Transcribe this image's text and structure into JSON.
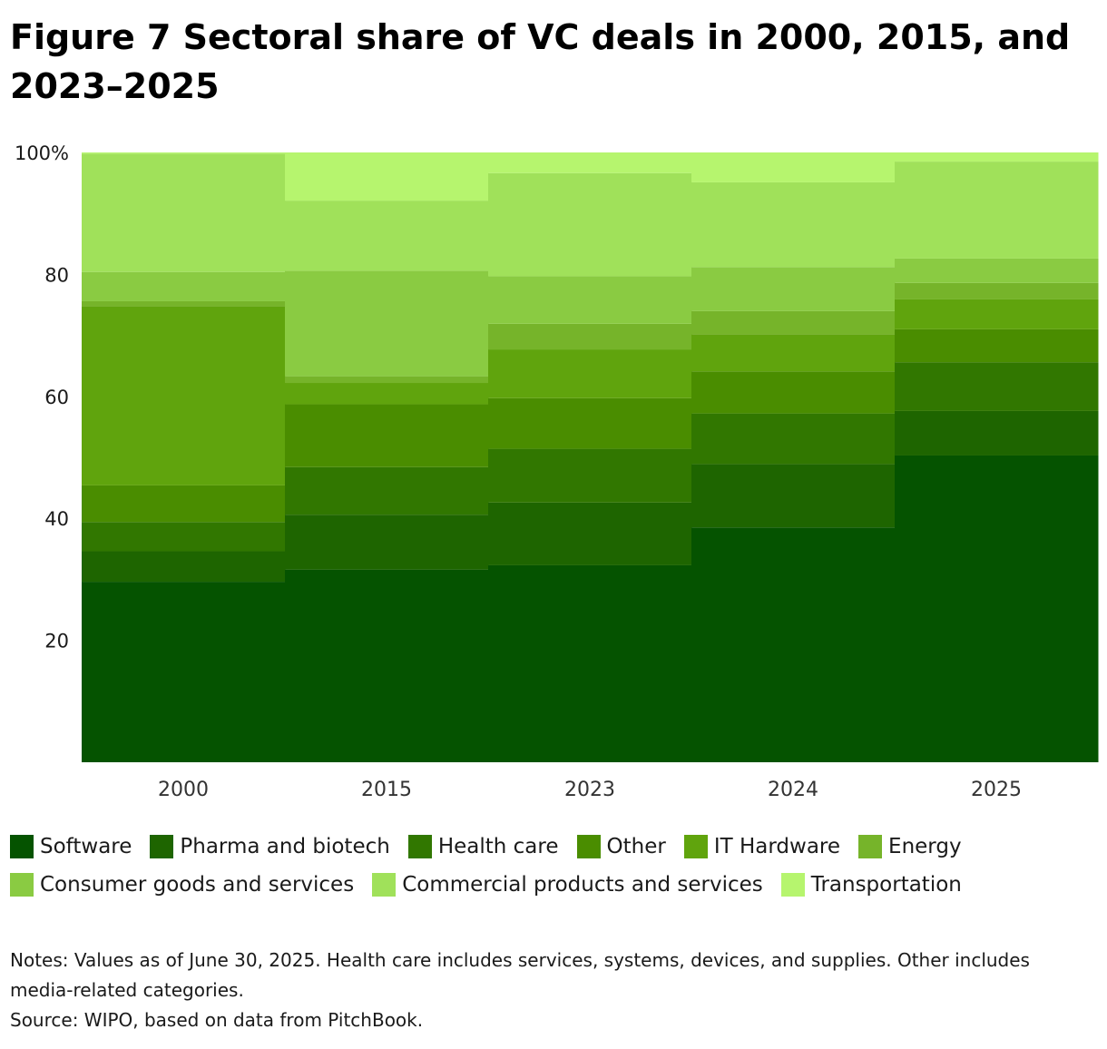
{
  "chart_data": {
    "type": "bar",
    "stacked": true,
    "title": "Figure 7 Sectoral share of VC deals in 2000, 2015, and 2023–2025",
    "xlabel": "",
    "ylabel": "",
    "ylim": [
      0,
      100
    ],
    "yticks": [
      20,
      40,
      60,
      80,
      100
    ],
    "ytick_labels": [
      "20",
      "40",
      "60",
      "80",
      "100%"
    ],
    "categories": [
      "2000",
      "2015",
      "2023",
      "2024",
      "2025"
    ],
    "series": [
      {
        "name": "Software",
        "color": "#055300",
        "values": [
          29.6,
          31.6,
          32.3,
          38.5,
          50.3
        ]
      },
      {
        "name": "Pharma and biotech",
        "color": "#1e6500",
        "values": [
          5.0,
          9.0,
          10.3,
          10.4,
          7.3
        ]
      },
      {
        "name": "Health care",
        "color": "#317700",
        "values": [
          4.8,
          7.8,
          8.8,
          8.3,
          8.0
        ]
      },
      {
        "name": "Other",
        "color": "#4a8d00",
        "values": [
          6.0,
          10.3,
          8.3,
          6.9,
          5.4
        ]
      },
      {
        "name": "IT Hardware",
        "color": "#60a40d",
        "values": [
          29.4,
          3.5,
          8.0,
          6.1,
          4.9
        ]
      },
      {
        "name": "Energy",
        "color": "#76b42a",
        "values": [
          0.8,
          1.1,
          4.2,
          3.8,
          2.7
        ]
      },
      {
        "name": "Consumer goods and services",
        "color": "#8acb42",
        "values": [
          4.8,
          17.3,
          7.8,
          7.2,
          4.0
        ]
      },
      {
        "name": "Commercial products and services",
        "color": "#a0e15a",
        "values": [
          19.4,
          11.5,
          16.9,
          13.9,
          15.9
        ]
      },
      {
        "name": "Transportation",
        "color": "#b6f56e",
        "values": [
          0.2,
          7.9,
          3.4,
          4.9,
          1.5
        ]
      }
    ],
    "legend_position": "bottom",
    "grid": false
  },
  "legend_rows": [
    [
      "Software",
      "Pharma and biotech",
      "Health care",
      "Other",
      "IT Hardware",
      "Energy"
    ],
    [
      "Consumer goods and services",
      "Commercial products and services",
      "Transportation"
    ]
  ],
  "notes": {
    "line1": "Notes: Values as of June 30, 2025. Health care includes services, systems, devices, and supplies. Other includes media-related categories.",
    "line2": "Source: WIPO, based on data from PitchBook."
  }
}
